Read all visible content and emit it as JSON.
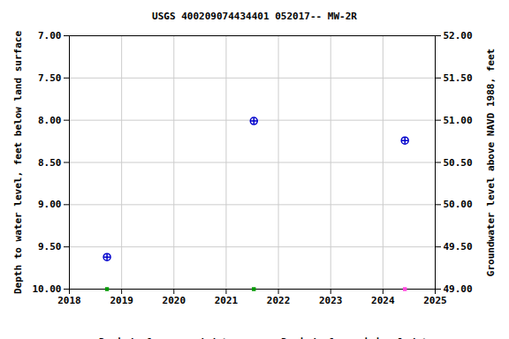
{
  "chart_data": {
    "type": "scatter",
    "title": "USGS 400209074434401 052017-- MW-2R",
    "ylabel": "Depth to water level, feet below land surface",
    "y2label": "Groundwater level above NAVD 1988, feet",
    "x": [
      2018.72,
      2021.53,
      2024.42
    ],
    "values": [
      9.62,
      8.01,
      8.24
    ],
    "color": "#0000cc",
    "marker": "circle",
    "xlim": [
      2018,
      2025
    ],
    "xticks": [
      2018,
      2019,
      2020,
      2021,
      2022,
      2023,
      2024,
      2025
    ],
    "ylim": [
      7,
      10
    ],
    "yticks": [
      {
        "value": 7,
        "label": "7.00"
      },
      {
        "value": 7.5,
        "label": "7.50"
      },
      {
        "value": 8,
        "label": "8.00"
      },
      {
        "value": 8.5,
        "label": "8.50"
      },
      {
        "value": 9,
        "label": "9.00"
      },
      {
        "value": 9.5,
        "label": "9.50"
      },
      {
        "value": 10,
        "label": "10.00"
      }
    ],
    "y2lim": [
      52,
      49
    ],
    "y2ticks": [
      {
        "value": 52,
        "label": "52.00"
      },
      {
        "value": 51.5,
        "label": "51.50"
      },
      {
        "value": 51,
        "label": "51.00"
      },
      {
        "value": 50.5,
        "label": "50.50"
      },
      {
        "value": 50,
        "label": "50.00"
      },
      {
        "value": 49.5,
        "label": "49.50"
      },
      {
        "value": 49,
        "label": "49.00"
      }
    ],
    "grid": true,
    "periods": [
      {
        "name": "Period of approved data",
        "color": "#009900",
        "x": [
          2018.72,
          2021.53
        ]
      },
      {
        "name": "Period of provisional data",
        "color": "#ff44dd",
        "x": [
          2024.42
        ]
      }
    ]
  }
}
